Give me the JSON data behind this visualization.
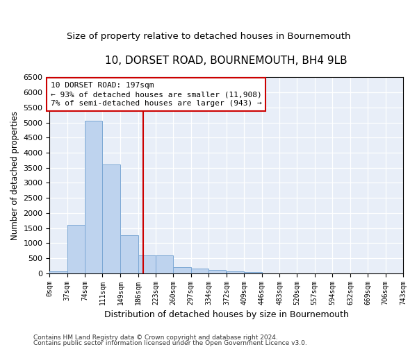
{
  "title": "10, DORSET ROAD, BOURNEMOUTH, BH4 9LB",
  "subtitle": "Size of property relative to detached houses in Bournemouth",
  "xlabel": "Distribution of detached houses by size in Bournemouth",
  "ylabel": "Number of detached properties",
  "footnote1": "Contains HM Land Registry data © Crown copyright and database right 2024.",
  "footnote2": "Contains public sector information licensed under the Open Government Licence v3.0.",
  "annotation_title": "10 DORSET ROAD: 197sqm",
  "annotation_line1": "← 93% of detached houses are smaller (11,908)",
  "annotation_line2": "7% of semi-detached houses are larger (943) →",
  "property_value": 197,
  "bin_edges": [
    0,
    37,
    74,
    111,
    149,
    186,
    223,
    260,
    297,
    334,
    372,
    409,
    446,
    483,
    520,
    557,
    594,
    632,
    669,
    706,
    743
  ],
  "bin_labels": [
    "0sqm",
    "37sqm",
    "74sqm",
    "111sqm",
    "149sqm",
    "186sqm",
    "223sqm",
    "260sqm",
    "297sqm",
    "334sqm",
    "372sqm",
    "409sqm",
    "446sqm",
    "483sqm",
    "520sqm",
    "557sqm",
    "594sqm",
    "632sqm",
    "669sqm",
    "706sqm",
    "743sqm"
  ],
  "counts": [
    60,
    1600,
    5050,
    3600,
    1250,
    600,
    600,
    200,
    160,
    100,
    70,
    50,
    0,
    0,
    0,
    0,
    0,
    0,
    0,
    0
  ],
  "bar_color": "#bed3ee",
  "bar_edge_color": "#7ba7d4",
  "vline_color": "#cc0000",
  "background_color": "#e8eef8",
  "grid_color": "#ffffff",
  "ylim_max": 6500,
  "ytick_step": 500,
  "title_fontsize": 11,
  "subtitle_fontsize": 9.5,
  "axis_label_fontsize": 8.5,
  "xlabel_fontsize": 9,
  "xtick_fontsize": 7,
  "ytick_fontsize": 8,
  "annotation_fontsize": 8,
  "annotation_box_color": "#cc0000",
  "footnote_fontsize": 6.5,
  "figsize": [
    6.0,
    5.0
  ],
  "dpi": 100
}
